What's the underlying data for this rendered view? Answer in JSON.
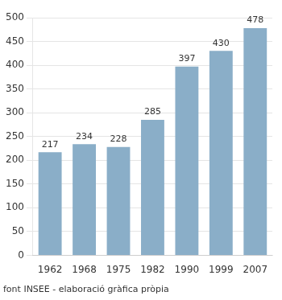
{
  "chart_data": {
    "type": "bar",
    "categories": [
      "1962",
      "1968",
      "1975",
      "1982",
      "1990",
      "1999",
      "2007"
    ],
    "values": [
      217,
      234,
      228,
      285,
      397,
      430,
      478
    ],
    "color": "#8AAEC8",
    "ylim": [
      0,
      500
    ],
    "yticks": [
      0,
      50,
      100,
      150,
      200,
      250,
      300,
      350,
      400,
      450,
      500
    ],
    "grid": true,
    "data_labels": true,
    "annotations": [
      "font INSEE - elaboració gràfica pròpia"
    ]
  }
}
